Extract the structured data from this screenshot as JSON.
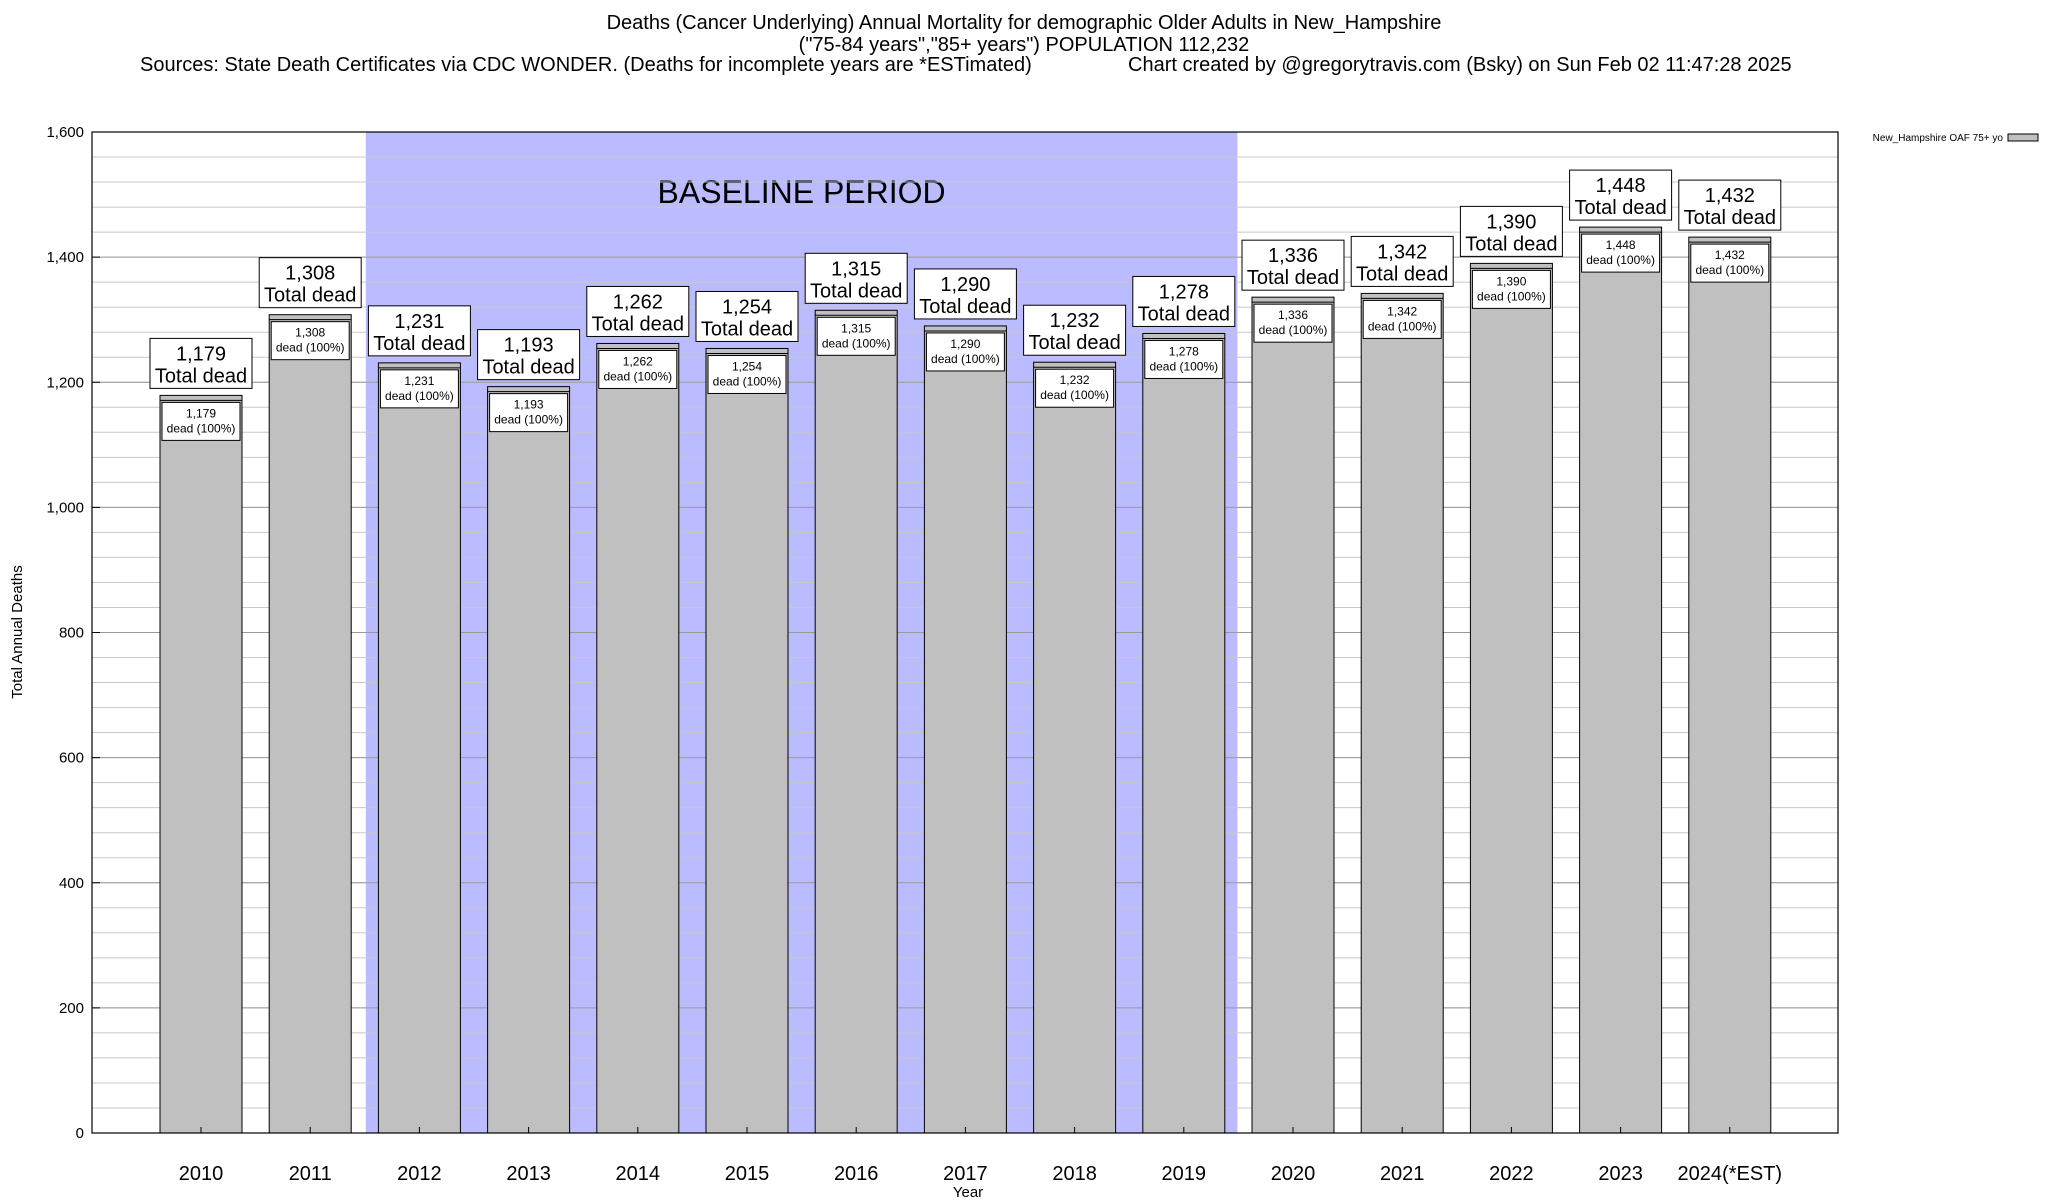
{
  "header": {
    "title_line1": "Deaths (Cancer Underlying) Annual Mortality for demographic Older Adults in New_Hampshire",
    "title_line2": "(\"75-84 years\",\"85+ years\") POPULATION 112,232",
    "sources": "Sources: State Death Certificates via CDC WONDER. (Deaths for incomplete years are *ESTimated)",
    "credit": "Chart created by @gregorytravis.com (Bsky) on Sun Feb 02 11:47:28 2025"
  },
  "chart_data": {
    "type": "bar",
    "categories": [
      "2010",
      "2011",
      "2012",
      "2013",
      "2014",
      "2015",
      "2016",
      "2017",
      "2018",
      "2019",
      "2020",
      "2021",
      "2022",
      "2023",
      "2024(*EST)"
    ],
    "series": [
      {
        "name": "New_Hampshire OAF 75+ yo",
        "values": [
          1179,
          1308,
          1231,
          1193,
          1262,
          1254,
          1315,
          1290,
          1232,
          1278,
          1336,
          1342,
          1390,
          1448,
          1432
        ]
      }
    ],
    "value_labels": [
      "1,179",
      "1,308",
      "1,231",
      "1,193",
      "1,262",
      "1,254",
      "1,315",
      "1,290",
      "1,232",
      "1,278",
      "1,336",
      "1,342",
      "1,390",
      "1,448",
      "1,432"
    ],
    "total_label": "Total dead",
    "inner_label": "dead (100%)",
    "xlabel": "Year",
    "ylabel": "Total Annual Deaths",
    "ylim": [
      0,
      1600
    ],
    "yticks": [
      0,
      200,
      400,
      600,
      800,
      1000,
      1200,
      1400,
      1600
    ],
    "ytick_labels": [
      "0",
      "200",
      "400",
      "600",
      "800",
      "1,000",
      "1,200",
      "1,400",
      "1,600"
    ],
    "minor_grid_step": 40,
    "baseline_period": {
      "label": "BASELINE PERIOD",
      "start": "2012",
      "end": "2019"
    },
    "colors": {
      "bar": "#c0c0c0",
      "baseline": "#bbbbff",
      "grid": "#c8c8c8"
    },
    "legend_position": "top-right"
  }
}
